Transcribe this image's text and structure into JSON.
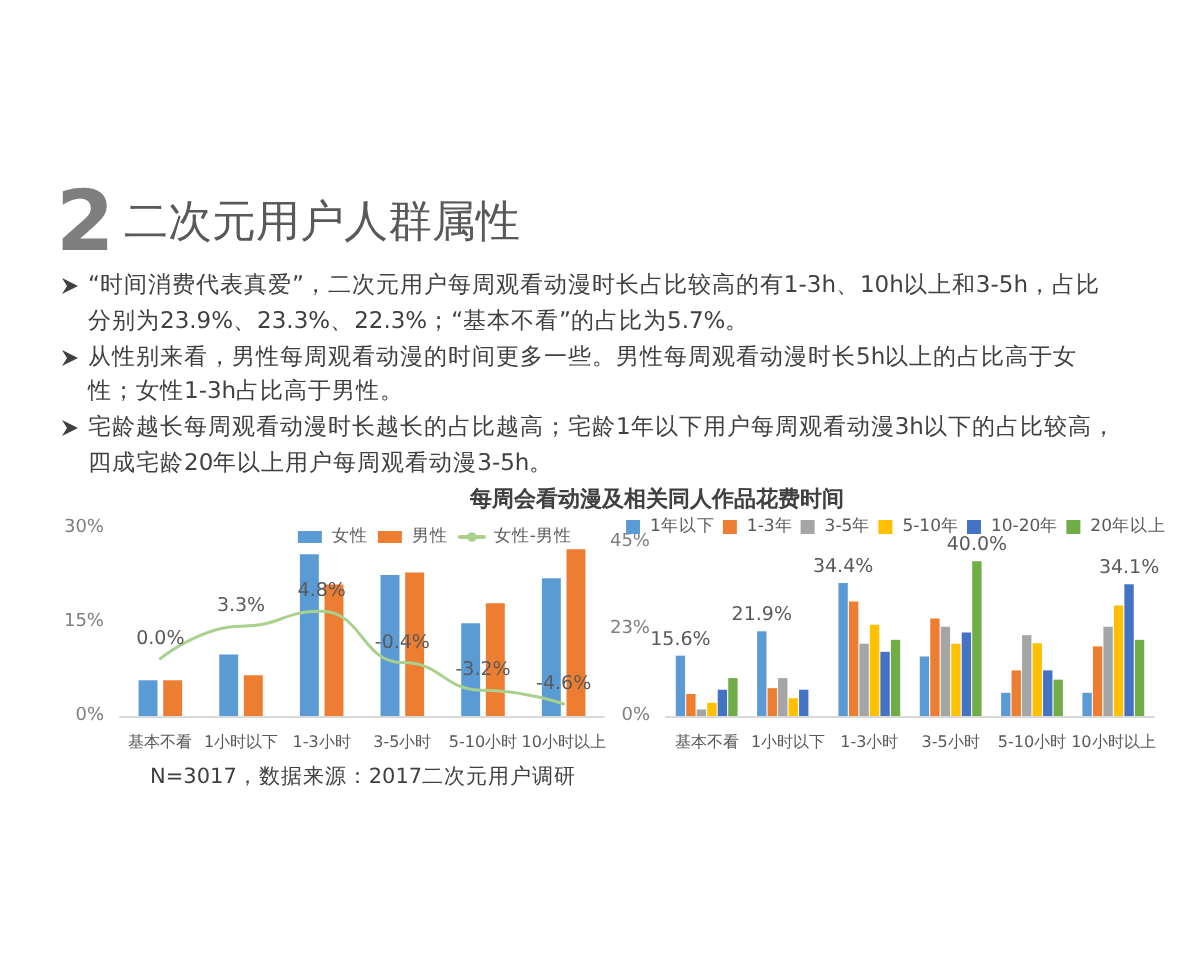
{
  "chart_data": [
    {
      "type": "other",
      "title": "二次元用户人群属性",
      "annotations": [
        "2",
        "“时间消费代表真爱”，二次元用户每周观看动漫时长占比较高的有1-3h、10h以上和3-5h，占比分别为23.9%、23.3%、22.3%；“基本不看”的占比为5.7%。",
        "从性别来看，男性每周观看动漫的时间更多一些。男性每周观看动漫时长5h以上的占比高于女性；女性1-3h占比高于男性。",
        "宅龄越长每周观看动漫时长越长的占比越高；宅龄1年以下用户每周观看动漫3h以下的占比较高，四成宅龄20年以上用户每周观看动漫3-5h。"
      ]
    },
    {
      "type": "bar",
      "categories": [
        "基本不看",
        "1小时以下",
        "1-3小时",
        "3-5小时",
        "5-10小时",
        "10小时以上"
      ],
      "series": [
        {
          "name": "女性",
          "color": "#5b9bd5",
          "values": [
            5.7,
            9.8,
            25.8,
            22.5,
            14.8,
            22.0
          ]
        },
        {
          "name": "男性",
          "color": "#ed7d31",
          "values": [
            5.7,
            6.5,
            21.0,
            22.9,
            18.0,
            26.6
          ]
        },
        {
          "name": "女性-男性",
          "type": "line",
          "axis": "y2",
          "color": "#a9d18e",
          "values": [
            0.0,
            3.3,
            4.8,
            -0.4,
            -3.2,
            -4.6
          ],
          "value_labels": [
            "0.0%",
            "3.3%",
            "4.8%",
            "-0.4%",
            "-3.2%",
            "-4.6%"
          ]
        }
      ],
      "ylim": [
        0,
        30
      ],
      "yticks": [
        {
          "value": 0,
          "label": "0%"
        },
        {
          "value": 15,
          "label": "15%"
        },
        {
          "value": 30,
          "label": "30%"
        }
      ],
      "legend": "top right",
      "marker": "none",
      "annotations": [
        "N=3017，数据来源：2017二次元用户调研"
      ]
    },
    {
      "type": "bar",
      "title": "每周会看动漫及相关同人作品花费时间",
      "categories": [
        "基本不看",
        "1小时以下",
        "1-3小时",
        "3-5小时",
        "5-10小时",
        "10小时以上"
      ],
      "series": [
        {
          "name": "1年以下",
          "color": "#5b9bd5",
          "values": [
            15.6,
            21.9,
            34.4,
            15.4,
            6.0,
            6.0
          ],
          "value_labels": [
            "15.6%",
            "21.9%",
            "34.4%",
            null,
            null,
            null
          ]
        },
        {
          "name": "1-3年",
          "color": "#ed7d31",
          "values": [
            5.7,
            7.2,
            29.6,
            25.2,
            11.8,
            18.0
          ],
          "value_labels": [
            null,
            null,
            null,
            null,
            null,
            null
          ]
        },
        {
          "name": "3-5年",
          "color": "#a5a5a5",
          "values": [
            1.7,
            9.8,
            18.7,
            23.1,
            20.9,
            23.1
          ],
          "value_labels": [
            null,
            null,
            null,
            null,
            null,
            null
          ]
        },
        {
          "name": "5-10年",
          "color": "#ffc000",
          "values": [
            3.4,
            4.6,
            23.6,
            18.7,
            18.8,
            28.6
          ],
          "value_labels": [
            null,
            null,
            null,
            null,
            null,
            null
          ]
        },
        {
          "name": "10-20年",
          "color": "#4472c4",
          "values": [
            6.8,
            6.8,
            16.6,
            21.6,
            11.8,
            34.1
          ],
          "value_labels": [
            null,
            null,
            null,
            null,
            null,
            "34.1%"
          ]
        },
        {
          "name": "20年以上",
          "color": "#70ad47",
          "values": [
            9.8,
            0,
            19.7,
            40.0,
            9.4,
            19.7
          ],
          "value_labels": [
            null,
            null,
            null,
            "40.0%",
            null,
            null
          ]
        }
      ],
      "ylim": [
        0,
        45
      ],
      "yticks": [
        {
          "value": 0,
          "label": "0%"
        },
        {
          "value": 22.5,
          "label": "23%"
        },
        {
          "value": 45,
          "label": "45%"
        }
      ],
      "legend": "top"
    }
  ]
}
